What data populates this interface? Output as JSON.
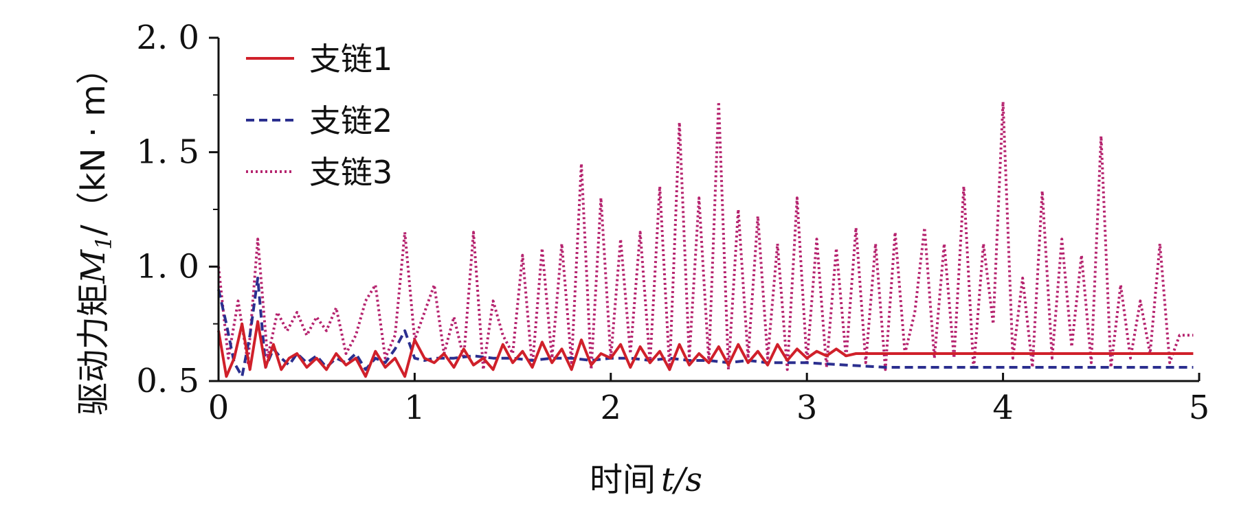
{
  "chart_data": {
    "type": "line",
    "xlabel": "时间t/s",
    "xlabel_prefix": "时间",
    "xlabel_var": "t",
    "xlabel_unit": "/s",
    "ylabel": "驱动力矩M1/(kN·m)",
    "ylabel_prefix": "驱动力矩",
    "ylabel_var": "M",
    "ylabel_sub": "1",
    "ylabel_unit": "/（kN · m）",
    "xlim": [
      0,
      5
    ],
    "ylim": [
      0.5,
      2.0
    ],
    "xticks": [
      0,
      1,
      2,
      3,
      4,
      5
    ],
    "xtick_labels": [
      "0",
      "1",
      "2",
      "3",
      "4",
      "5"
    ],
    "yticks": [
      0.5,
      1.0,
      1.5,
      2.0
    ],
    "ytick_labels": [
      "0. 5",
      "1. 0",
      "1. 5",
      "2. 0"
    ],
    "grid": false,
    "legend_position": "top-left",
    "series": [
      {
        "name": "支链1",
        "color": "#d0202a",
        "dash": "solid",
        "x": [
          0.0,
          0.04,
          0.08,
          0.12,
          0.16,
          0.2,
          0.24,
          0.28,
          0.32,
          0.36,
          0.4,
          0.45,
          0.5,
          0.55,
          0.6,
          0.65,
          0.7,
          0.75,
          0.8,
          0.85,
          0.9,
          0.95,
          1.0,
          1.05,
          1.1,
          1.15,
          1.2,
          1.25,
          1.3,
          1.35,
          1.4,
          1.45,
          1.5,
          1.55,
          1.6,
          1.65,
          1.7,
          1.75,
          1.8,
          1.85,
          1.9,
          1.95,
          2.0,
          2.05,
          2.1,
          2.15,
          2.2,
          2.25,
          2.3,
          2.35,
          2.4,
          2.45,
          2.5,
          2.55,
          2.6,
          2.65,
          2.7,
          2.75,
          2.8,
          2.85,
          2.9,
          2.95,
          3.0,
          3.05,
          3.1,
          3.15,
          3.2,
          3.25,
          3.3,
          3.4,
          3.5,
          3.6,
          3.7,
          3.8,
          3.9,
          4.0,
          4.2,
          4.4,
          4.6,
          4.8,
          4.97
        ],
        "y": [
          0.72,
          0.52,
          0.6,
          0.75,
          0.55,
          0.76,
          0.56,
          0.66,
          0.55,
          0.6,
          0.62,
          0.56,
          0.6,
          0.55,
          0.62,
          0.57,
          0.6,
          0.52,
          0.63,
          0.56,
          0.6,
          0.52,
          0.68,
          0.6,
          0.58,
          0.62,
          0.56,
          0.64,
          0.57,
          0.6,
          0.55,
          0.66,
          0.58,
          0.63,
          0.56,
          0.67,
          0.58,
          0.64,
          0.55,
          0.68,
          0.57,
          0.62,
          0.6,
          0.66,
          0.56,
          0.65,
          0.58,
          0.63,
          0.55,
          0.66,
          0.57,
          0.62,
          0.58,
          0.65,
          0.57,
          0.66,
          0.58,
          0.63,
          0.57,
          0.66,
          0.59,
          0.64,
          0.6,
          0.63,
          0.61,
          0.64,
          0.61,
          0.62,
          0.62,
          0.62,
          0.62,
          0.62,
          0.62,
          0.62,
          0.62,
          0.62,
          0.62,
          0.62,
          0.62,
          0.62,
          0.62
        ]
      },
      {
        "name": "支链2",
        "color": "#2b2f8f",
        "dash": "dashed",
        "x": [
          0.0,
          0.04,
          0.08,
          0.12,
          0.16,
          0.2,
          0.24,
          0.28,
          0.32,
          0.36,
          0.4,
          0.45,
          0.5,
          0.55,
          0.6,
          0.65,
          0.7,
          0.75,
          0.8,
          0.85,
          0.9,
          0.95,
          1.0,
          1.05,
          1.1,
          1.2,
          1.3,
          1.4,
          1.5,
          1.6,
          1.7,
          1.8,
          1.9,
          2.0,
          2.1,
          2.2,
          2.3,
          2.4,
          2.5,
          2.6,
          2.7,
          2.8,
          2.9,
          3.0,
          3.2,
          3.4,
          3.6,
          3.8,
          4.0,
          4.2,
          4.4,
          4.6,
          4.8,
          4.97
        ],
        "y": [
          0.9,
          0.75,
          0.58,
          0.52,
          0.7,
          0.95,
          0.56,
          0.64,
          0.6,
          0.57,
          0.62,
          0.58,
          0.61,
          0.56,
          0.6,
          0.58,
          0.62,
          0.55,
          0.6,
          0.58,
          0.64,
          0.72,
          0.6,
          0.59,
          0.6,
          0.6,
          0.61,
          0.6,
          0.6,
          0.59,
          0.6,
          0.6,
          0.59,
          0.6,
          0.6,
          0.59,
          0.6,
          0.59,
          0.59,
          0.58,
          0.59,
          0.58,
          0.58,
          0.58,
          0.57,
          0.56,
          0.56,
          0.56,
          0.56,
          0.56,
          0.56,
          0.56,
          0.56,
          0.56
        ]
      },
      {
        "name": "支链3",
        "color": "#b5236e",
        "dash": "dotted",
        "x": [
          0.0,
          0.05,
          0.1,
          0.15,
          0.2,
          0.25,
          0.3,
          0.35,
          0.4,
          0.45,
          0.5,
          0.55,
          0.6,
          0.65,
          0.7,
          0.75,
          0.8,
          0.85,
          0.9,
          0.95,
          1.0,
          1.05,
          1.1,
          1.15,
          1.2,
          1.25,
          1.3,
          1.35,
          1.4,
          1.45,
          1.5,
          1.55,
          1.6,
          1.65,
          1.7,
          1.75,
          1.8,
          1.85,
          1.9,
          1.95,
          2.0,
          2.05,
          2.1,
          2.15,
          2.2,
          2.25,
          2.3,
          2.35,
          2.4,
          2.45,
          2.5,
          2.55,
          2.6,
          2.65,
          2.7,
          2.75,
          2.8,
          2.85,
          2.9,
          2.95,
          3.0,
          3.05,
          3.1,
          3.15,
          3.2,
          3.25,
          3.3,
          3.35,
          3.4,
          3.45,
          3.5,
          3.55,
          3.6,
          3.65,
          3.7,
          3.75,
          3.8,
          3.85,
          3.9,
          3.95,
          4.0,
          4.05,
          4.1,
          4.15,
          4.2,
          4.25,
          4.3,
          4.35,
          4.4,
          4.45,
          4.5,
          4.55,
          4.6,
          4.65,
          4.7,
          4.75,
          4.8,
          4.85,
          4.9,
          4.97
        ],
        "y": [
          1.0,
          0.6,
          0.85,
          0.58,
          1.12,
          0.6,
          0.8,
          0.72,
          0.8,
          0.7,
          0.78,
          0.72,
          0.82,
          0.62,
          0.7,
          0.85,
          0.92,
          0.6,
          0.7,
          1.15,
          0.68,
          0.8,
          0.92,
          0.62,
          0.78,
          0.6,
          1.15,
          0.55,
          0.85,
          0.7,
          0.62,
          1.05,
          0.56,
          1.08,
          0.6,
          1.1,
          0.58,
          1.45,
          0.55,
          1.3,
          0.6,
          1.12,
          0.62,
          1.15,
          0.58,
          1.35,
          0.55,
          1.63,
          0.6,
          1.3,
          0.58,
          1.72,
          0.55,
          1.25,
          0.6,
          1.22,
          0.6,
          1.1,
          0.55,
          1.3,
          0.58,
          1.12,
          0.56,
          1.08,
          0.6,
          1.17,
          0.58,
          1.1,
          0.55,
          1.15,
          0.62,
          0.8,
          1.17,
          0.6,
          1.1,
          0.6,
          1.35,
          0.55,
          1.1,
          0.75,
          1.72,
          0.6,
          0.95,
          0.56,
          1.33,
          0.6,
          1.12,
          0.65,
          1.05,
          0.58,
          1.57,
          0.56,
          0.92,
          0.6,
          0.85,
          0.62,
          1.1,
          0.58,
          0.7,
          0.7
        ]
      }
    ]
  }
}
